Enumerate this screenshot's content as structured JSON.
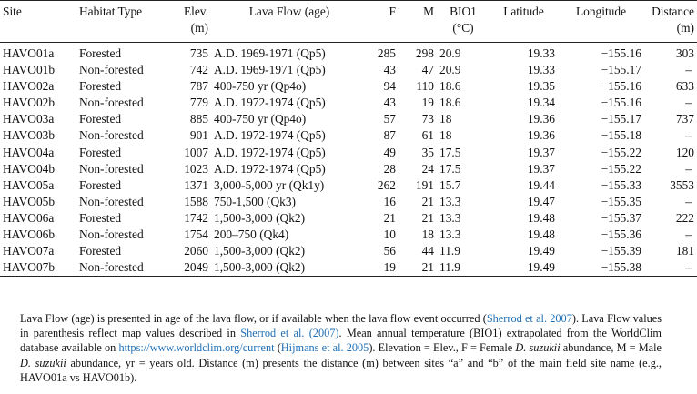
{
  "table": {
    "headers": [
      {
        "line1": "Site",
        "line2": ""
      },
      {
        "line1": "Habitat Type",
        "line2": ""
      },
      {
        "line1": "Elev.",
        "line2": "(m)"
      },
      {
        "line1": "Lava Flow (age)",
        "line2": ""
      },
      {
        "line1": "F",
        "line2": ""
      },
      {
        "line1": "M",
        "line2": ""
      },
      {
        "line1": "BIO1",
        "line2": "(°C)"
      },
      {
        "line1": "Latitude",
        "line2": ""
      },
      {
        "line1": "Longitude",
        "line2": ""
      },
      {
        "line1": "Distance",
        "line2": "(m)"
      }
    ],
    "rows": [
      [
        "HAVO01a",
        "Forested",
        "735",
        "A.D. 1969-1971 (Qp5)",
        "285",
        "298",
        "20.9",
        "19.33",
        "−155.16",
        "303"
      ],
      [
        "HAVO01b",
        "Non-forested",
        "742",
        "A.D. 1969-1971 (Qp5)",
        "43",
        "47",
        "20.9",
        "19.33",
        "−155.17",
        "–"
      ],
      [
        "HAVO02a",
        "Forested",
        "787",
        "400-750 yr (Qp4o)",
        "94",
        "110",
        "18.6",
        "19.35",
        "−155.16",
        "633"
      ],
      [
        "HAVO02b",
        "Non-forested",
        "779",
        "A.D. 1972-1974 (Qp5)",
        "43",
        "19",
        "18.6",
        "19.34",
        "−155.16",
        "–"
      ],
      [
        "HAVO03a",
        "Forested",
        "885",
        "400-750 yr (Qp4o)",
        "57",
        "73",
        "18",
        "19.36",
        "−155.17",
        "737"
      ],
      [
        "HAVO03b",
        "Non-forested",
        "901",
        "A.D. 1972-1974 (Qp5)",
        "87",
        "61",
        "18",
        "19.36",
        "−155.18",
        "–"
      ],
      [
        "HAVO04a",
        "Forested",
        "1007",
        "A.D. 1972-1974 (Qp5)",
        "49",
        "35",
        "17.5",
        "19.37",
        "−155.22",
        "120"
      ],
      [
        "HAVO04b",
        "Non-forested",
        "1023",
        "A.D. 1972-1974 (Qp5)",
        "28",
        "24",
        "17.5",
        "19.37",
        "−155.22",
        "–"
      ],
      [
        "HAVO05a",
        "Forested",
        "1371",
        "3,000-5,000 yr (Qk1y)",
        "262",
        "191",
        "15.7",
        "19.44",
        "−155.33",
        "3553"
      ],
      [
        "HAVO05b",
        "Non-forested",
        "1588",
        "750-1,500 (Qk3)",
        "16",
        "21",
        "13.3",
        "19.47",
        "−155.35",
        "–"
      ],
      [
        "HAVO06a",
        "Forested",
        "1742",
        "1,500-3,000 (Qk2)",
        "21",
        "21",
        "13.3",
        "19.48",
        "−155.37",
        "222"
      ],
      [
        "HAVO06b",
        "Non-forested",
        "1754",
        "200–750 (Qk4)",
        "10",
        "18",
        "13.3",
        "19.48",
        "−155.36",
        "–"
      ],
      [
        "HAVO07a",
        "Forested",
        "2060",
        "1,500-3,000 (Qk2)",
        "56",
        "44",
        "11.9",
        "19.49",
        "−155.39",
        "181"
      ],
      [
        "HAVO07b",
        "Non-forested",
        "2049",
        "1,500-3,000 (Qk2)",
        "19",
        "21",
        "11.9",
        "19.49",
        "−155.38",
        "–"
      ]
    ]
  },
  "notes": {
    "s1": "Lava Flow (age) is presented in age of the lava flow, or if available when the lava flow event occurred (",
    "l1": "Sherrod et al. 2007",
    "s2": "). Lava Flow values in parenthesis reflect map values described in ",
    "l2": "Sherrod et al. (2007)",
    "s3": ". Mean annual temperature (BIO1) extrapolated from the WorldClim database available on ",
    "l3": "https://www.worldclim.org/current",
    "s4": " (",
    "l4": "Hijmans et al. 2005",
    "s5": "). Elevation = Elev., F = Female ",
    "i1": "D. suzukii",
    "s6": " abundance, M = Male ",
    "i2": "D. suzukii",
    "s7": " abundance, yr = years old. Distance (m) presents the distance (m) between sites “a” and “b” of the main field site name (e.g., HAVO01a vs HAVO01b)."
  },
  "colors": {
    "link": "#1f6fb5",
    "rule": "#222222"
  }
}
